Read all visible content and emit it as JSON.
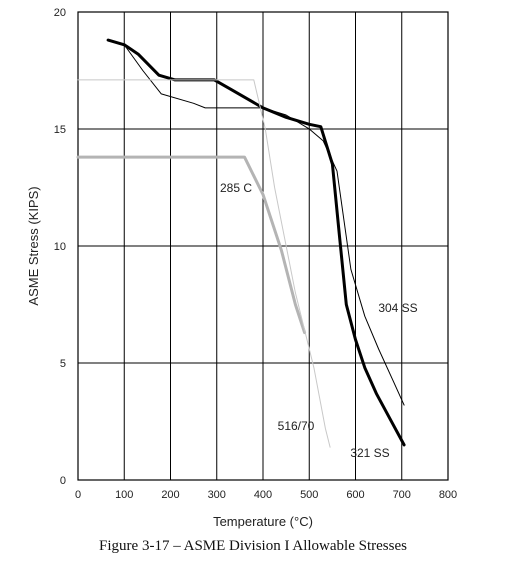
{
  "caption": "Figure 3-17 – ASME Division I Allowable Stresses",
  "chart_data": {
    "type": "line",
    "xlabel": "Temperature (°C)",
    "ylabel": "ASME Stress (KIPS)",
    "xlim": [
      0,
      800
    ],
    "ylim": [
      0,
      20
    ],
    "x_ticks": [
      "0",
      "100",
      "200",
      "300",
      "400",
      "500",
      "600",
      "700",
      "800"
    ],
    "y_ticks": [
      "0",
      "5",
      "10",
      "15",
      "20"
    ],
    "grid": true,
    "series": [
      {
        "name": "321 SS",
        "color": "#000000",
        "width": 3,
        "points": [
          [
            65,
            18.8
          ],
          [
            100,
            18.6
          ],
          [
            130,
            18.2
          ],
          [
            175,
            17.3
          ],
          [
            210,
            17.1
          ],
          [
            295,
            17.1
          ],
          [
            330,
            16.7
          ],
          [
            400,
            15.9
          ],
          [
            450,
            15.5
          ],
          [
            500,
            15.2
          ],
          [
            525,
            15.1
          ],
          [
            550,
            13.5
          ],
          [
            565,
            10.5
          ],
          [
            580,
            7.5
          ],
          [
            600,
            6.0
          ],
          [
            620,
            4.8
          ],
          [
            645,
            3.7
          ],
          [
            675,
            2.6
          ],
          [
            705,
            1.5
          ]
        ]
      },
      {
        "name": "304 SS",
        "color": "#000000",
        "width": 1,
        "points": [
          [
            65,
            18.8
          ],
          [
            100,
            18.6
          ],
          [
            140,
            17.5
          ],
          [
            180,
            16.5
          ],
          [
            250,
            16.1
          ],
          [
            275,
            15.9
          ],
          [
            400,
            15.9
          ],
          [
            450,
            15.6
          ],
          [
            500,
            15.0
          ],
          [
            530,
            14.5
          ],
          [
            560,
            13.2
          ],
          [
            590,
            9.0
          ],
          [
            620,
            7.0
          ],
          [
            650,
            5.6
          ],
          [
            680,
            4.3
          ],
          [
            705,
            3.2
          ]
        ]
      },
      {
        "name": "285 C",
        "color": "#b4b4b4",
        "width": 3,
        "points": [
          [
            0,
            13.8
          ],
          [
            360,
            13.8
          ],
          [
            400,
            12.2
          ],
          [
            440,
            9.8
          ],
          [
            470,
            7.5
          ],
          [
            490,
            6.3
          ]
        ]
      },
      {
        "name": "516/70",
        "color": "#c8c8c8",
        "width": 1,
        "points": [
          [
            0,
            17.1
          ],
          [
            380,
            17.1
          ],
          [
            405,
            15.0
          ],
          [
            425,
            12.5
          ],
          [
            470,
            8.0
          ],
          [
            510,
            4.8
          ],
          [
            535,
            2.2
          ],
          [
            545,
            1.4
          ]
        ]
      }
    ]
  }
}
